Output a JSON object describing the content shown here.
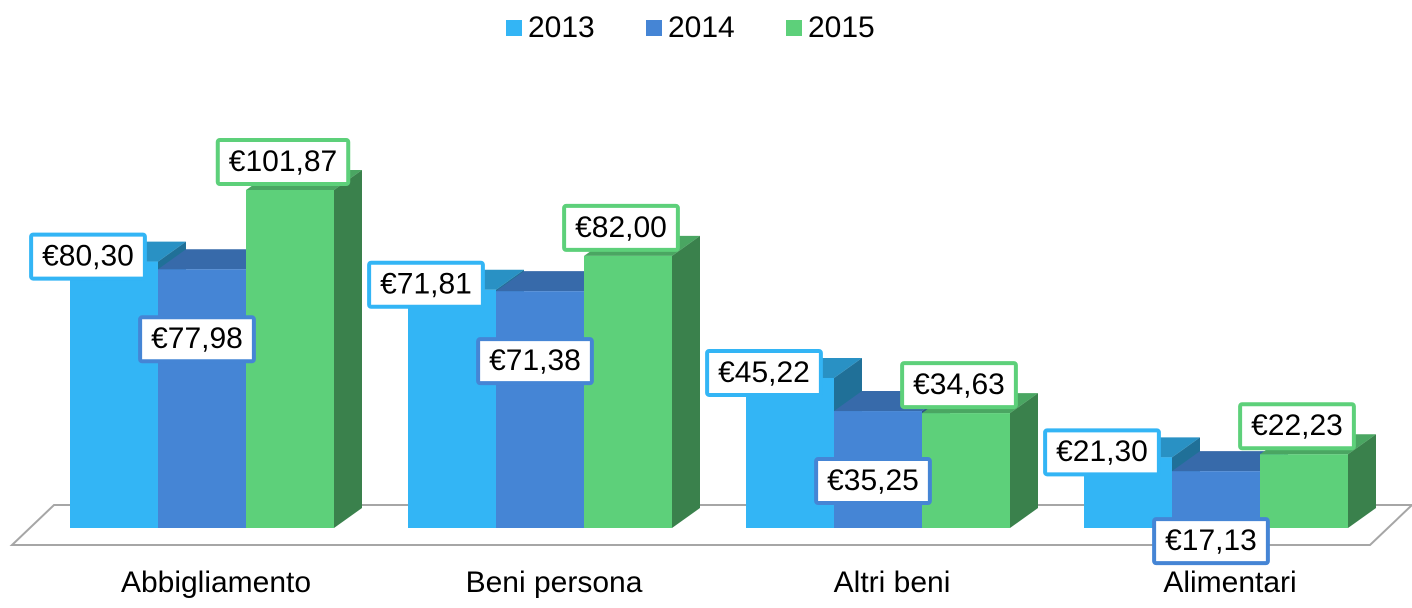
{
  "chart_data": {
    "type": "bar",
    "categories": [
      "Abbigliamento",
      "Beni persona",
      "Altri beni",
      "Alimentari"
    ],
    "series": [
      {
        "name": "2013",
        "color": "#33b5f5",
        "values": [
          80.3,
          71.81,
          45.22,
          21.3
        ],
        "value_labels": [
          "€80,30",
          "€71,81",
          "€45,22",
          "€21,30"
        ]
      },
      {
        "name": "2014",
        "color": "#4585d5",
        "values": [
          77.98,
          71.38,
          35.25,
          17.13
        ],
        "value_labels": [
          "€77,98",
          "€71,38",
          "€35,25",
          "€17,13"
        ]
      },
      {
        "name": "2015",
        "color": "#5dd07a",
        "values": [
          101.87,
          82.0,
          34.63,
          22.23
        ],
        "value_labels": [
          "€101,87",
          "€82,00",
          "€34,63",
          "€22,23"
        ]
      }
    ],
    "legend": "top"
  }
}
